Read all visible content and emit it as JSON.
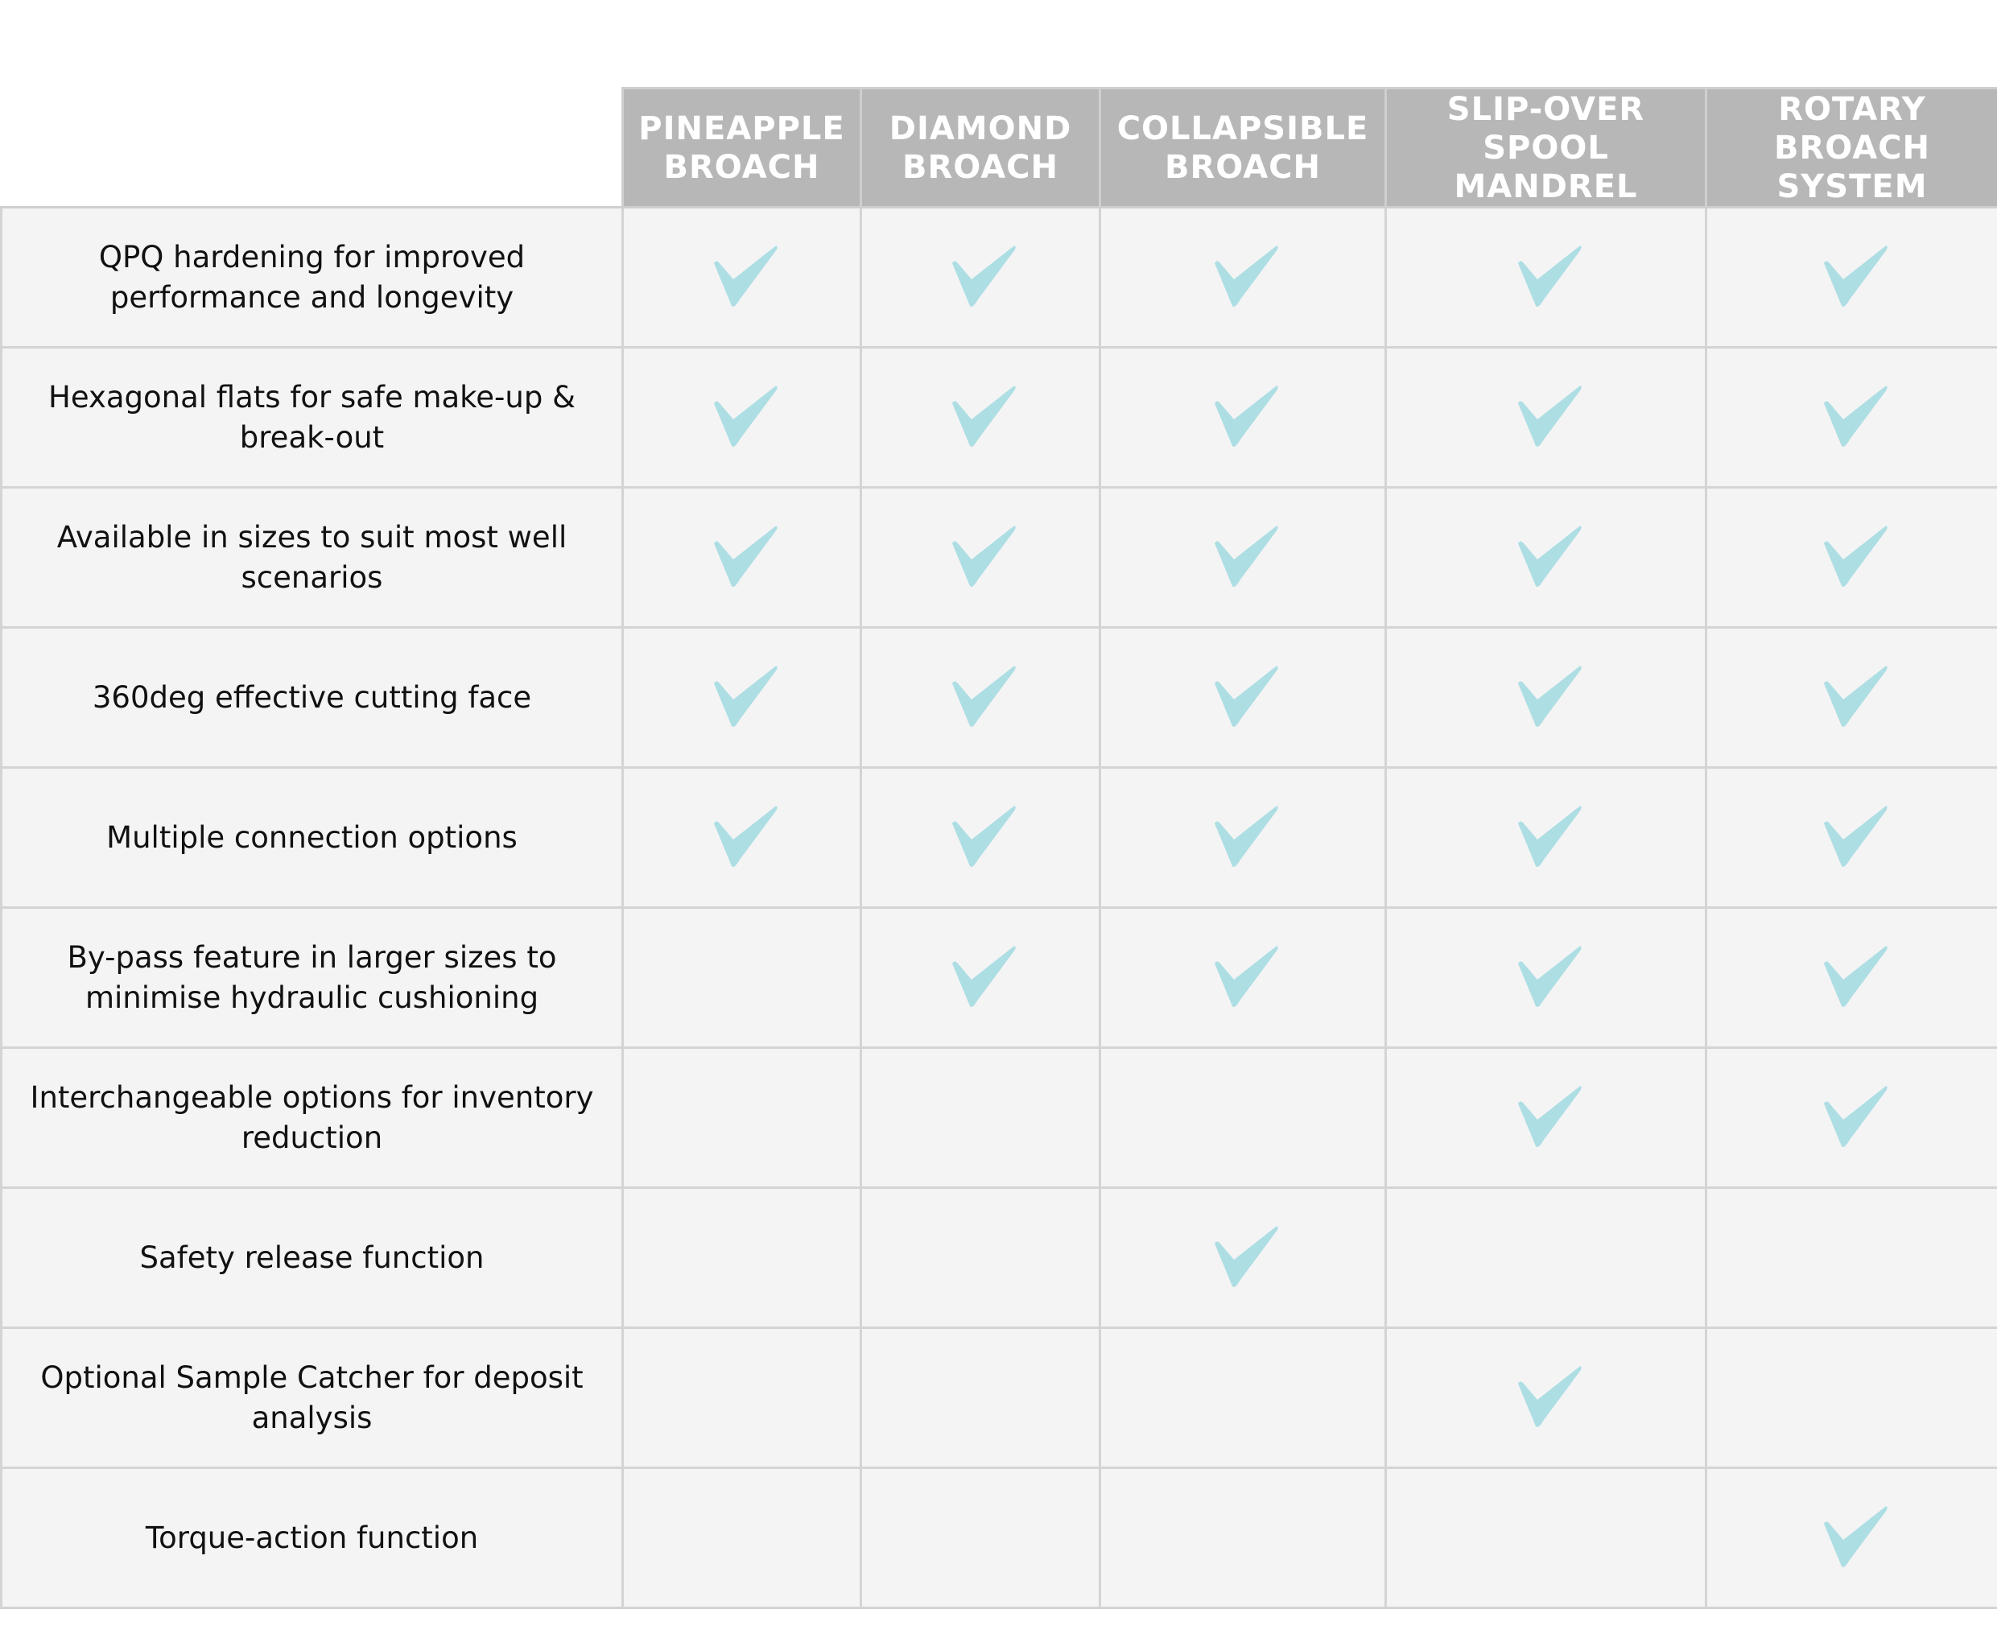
{
  "check_color": "#ADDEE4",
  "columns": [
    "PINEAPPLE BROACH",
    "DIAMOND BROACH",
    "COLLAPSIBLE BROACH",
    "SLIP-OVER SPOOL MANDREL",
    "ROTARY BROACH SYSTEM"
  ],
  "rows": [
    {
      "feature": "QPQ hardening for improved performance and longevity",
      "checks": [
        true,
        true,
        true,
        true,
        true
      ]
    },
    {
      "feature": "Hexagonal flats for safe make-up & break-out",
      "checks": [
        true,
        true,
        true,
        true,
        true
      ]
    },
    {
      "feature": "Available in sizes to suit most well scenarios",
      "checks": [
        true,
        true,
        true,
        true,
        true
      ]
    },
    {
      "feature": "360deg effective cutting face",
      "checks": [
        true,
        true,
        true,
        true,
        true
      ]
    },
    {
      "feature": "Multiple connection options",
      "checks": [
        true,
        true,
        true,
        true,
        true
      ]
    },
    {
      "feature": "By-pass feature in larger sizes to minimise hydraulic cushioning",
      "checks": [
        false,
        true,
        true,
        true,
        true
      ]
    },
    {
      "feature": "Interchangeable options for inventory reduction",
      "checks": [
        false,
        false,
        false,
        true,
        true
      ]
    },
    {
      "feature": "Safety release function",
      "checks": [
        false,
        false,
        true,
        false,
        false
      ]
    },
    {
      "feature": "Optional Sample Catcher for deposit analysis",
      "checks": [
        false,
        false,
        false,
        true,
        false
      ]
    },
    {
      "feature": "Torque-action function",
      "checks": [
        false,
        false,
        false,
        false,
        true
      ]
    }
  ]
}
